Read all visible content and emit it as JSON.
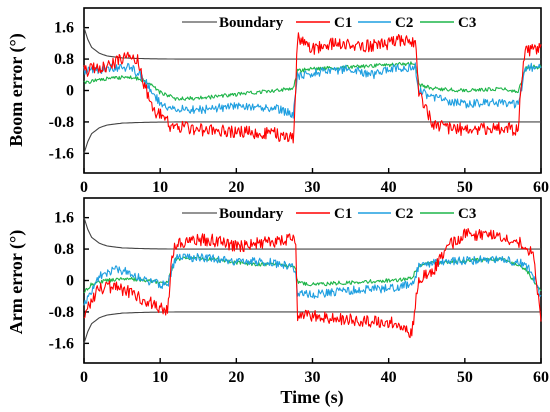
{
  "chart_data": [
    {
      "type": "line",
      "ylabel": "Boom error (°)",
      "xlabel": "",
      "xlim": [
        0,
        60
      ],
      "ylim": [
        -2.1,
        2.1
      ],
      "xticks": [
        "0",
        "10",
        "20",
        "30",
        "40",
        "50",
        "60"
      ],
      "yticks": [
        "-1.6",
        "-0.8",
        "0",
        "0.8",
        "1.6"
      ],
      "legend": [
        "Boundary",
        "C1",
        "C2",
        "C3"
      ],
      "legend_position": "top",
      "boundary": {
        "start": 1.6,
        "steady": 0.8,
        "x": [
          0,
          0.5,
          1,
          2,
          3,
          5,
          8,
          12,
          60
        ],
        "upper": [
          1.6,
          1.3,
          1.1,
          0.95,
          0.88,
          0.83,
          0.81,
          0.8,
          0.8
        ]
      },
      "series": [
        {
          "name": "C1",
          "color": "#ff0000",
          "x": [
            0,
            3,
            6,
            7,
            8,
            9,
            10,
            11,
            11.5,
            12,
            15,
            20,
            25,
            27.5,
            27.8,
            28,
            30,
            33,
            36,
            40,
            42,
            43.5,
            44,
            46,
            50,
            55,
            57,
            57.5,
            58,
            60
          ],
          "y": [
            0.5,
            0.6,
            0.95,
            0.8,
            0.1,
            -0.5,
            -0.6,
            -0.8,
            -1.0,
            -0.9,
            -1.0,
            -1.05,
            -1.1,
            -1.25,
            0.0,
            1.4,
            1.05,
            1.2,
            1.1,
            1.2,
            1.3,
            1.2,
            -0.1,
            -0.9,
            -1.0,
            -0.95,
            -1.0,
            0.4,
            1.0,
            1.05
          ]
        },
        {
          "name": "C2",
          "color": "#1f9fe0",
          "x": [
            0,
            3,
            6,
            8,
            9,
            10,
            11,
            12,
            15,
            20,
            25,
            27.5,
            28,
            30,
            35,
            38,
            40,
            43.5,
            44,
            46,
            50,
            55,
            57,
            58,
            60
          ],
          "y": [
            0.5,
            0.55,
            0.6,
            0.3,
            -0.1,
            -0.3,
            -0.4,
            -0.45,
            -0.5,
            -0.4,
            -0.45,
            -0.6,
            0.35,
            0.45,
            0.55,
            0.4,
            0.55,
            0.6,
            0.0,
            -0.2,
            -0.35,
            -0.3,
            -0.35,
            0.55,
            0.65
          ]
        },
        {
          "name": "C3",
          "color": "#1fb54a",
          "x": [
            0,
            3,
            6,
            8,
            9,
            10,
            12,
            15,
            20,
            25,
            27.5,
            28,
            30,
            35,
            40,
            43.5,
            44,
            46,
            50,
            55,
            57,
            58,
            60
          ],
          "y": [
            0.2,
            0.3,
            0.35,
            0.25,
            0.1,
            -0.05,
            -0.2,
            -0.2,
            -0.1,
            0.0,
            0.05,
            0.5,
            0.55,
            0.6,
            0.65,
            0.7,
            0.15,
            0.05,
            0.0,
            0.05,
            -0.05,
            0.6,
            0.6
          ]
        }
      ]
    },
    {
      "type": "line",
      "ylabel": "Arm error (°)",
      "xlabel": "Time (s)",
      "xlim": [
        0,
        60
      ],
      "ylim": [
        -2.1,
        2.1
      ],
      "xticks": [
        "0",
        "10",
        "20",
        "30",
        "40",
        "50",
        "60"
      ],
      "yticks": [
        "-1.6",
        "-0.8",
        "0",
        "0.8",
        "1.6"
      ],
      "legend": [
        "Boundary",
        "C1",
        "C2",
        "C3"
      ],
      "legend_position": "top",
      "boundary": {
        "start": 1.6,
        "steady": 0.8,
        "x": [
          0,
          0.5,
          1,
          2,
          3,
          5,
          8,
          12,
          60
        ],
        "upper": [
          1.6,
          1.3,
          1.1,
          0.95,
          0.88,
          0.83,
          0.81,
          0.8,
          0.8
        ]
      },
      "series": [
        {
          "name": "C1",
          "color": "#ff0000",
          "x": [
            0,
            1,
            2,
            4,
            6,
            8,
            10,
            11,
            11.5,
            12,
            15,
            18,
            20,
            25,
            27.8,
            28,
            30,
            35,
            40,
            42,
            43,
            43.5,
            44,
            46,
            48,
            50,
            53,
            57,
            59,
            60
          ],
          "y": [
            -0.9,
            -0.5,
            -0.2,
            -0.15,
            -0.3,
            -0.5,
            -0.7,
            -0.8,
            0.6,
            0.9,
            1.05,
            1.0,
            0.85,
            1.0,
            1.1,
            -0.9,
            -0.9,
            -1.0,
            -1.05,
            -1.2,
            -1.4,
            -0.6,
            0.0,
            0.3,
            0.9,
            1.2,
            1.15,
            1.0,
            0.7,
            -1.0
          ]
        },
        {
          "name": "C2",
          "color": "#1f9fe0",
          "x": [
            0,
            1,
            2,
            4,
            6,
            8,
            10,
            11,
            12,
            15,
            20,
            25,
            27.8,
            28,
            30,
            35,
            40,
            43,
            44,
            46,
            50,
            55,
            58,
            59,
            60
          ],
          "y": [
            -0.6,
            -0.3,
            0.1,
            0.3,
            0.2,
            0.0,
            -0.1,
            -0.1,
            0.55,
            0.6,
            0.5,
            0.45,
            0.3,
            -0.3,
            -0.35,
            -0.25,
            -0.2,
            -0.1,
            0.35,
            0.45,
            0.5,
            0.55,
            0.4,
            0.1,
            -0.4
          ]
        },
        {
          "name": "C3",
          "color": "#1fb54a",
          "x": [
            0,
            1,
            3,
            6,
            8,
            10,
            11,
            12,
            15,
            20,
            25,
            27.8,
            28,
            30,
            35,
            40,
            43,
            44,
            46,
            50,
            55,
            58,
            59,
            60
          ],
          "y": [
            -0.3,
            -0.1,
            0.0,
            0.05,
            0.0,
            -0.05,
            -0.05,
            0.55,
            0.6,
            0.45,
            0.4,
            0.35,
            -0.05,
            -0.1,
            -0.05,
            0.0,
            0.05,
            0.4,
            0.45,
            0.5,
            0.55,
            0.3,
            0.0,
            -0.3
          ]
        }
      ]
    }
  ]
}
